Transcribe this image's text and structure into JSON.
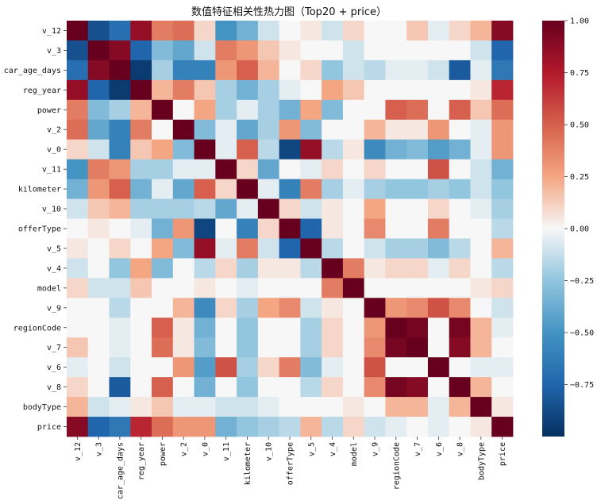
{
  "chart_data": {
    "type": "heatmap",
    "title": "数值特征相关性热力图（Top20 + price）",
    "xlabel": "",
    "ylabel": "",
    "labels": [
      "v_12",
      "v_3",
      "car_age_days",
      "reg_year",
      "power",
      "v_2",
      "v_0",
      "v_11",
      "kilometer",
      "v_10",
      "offerType",
      "v_5",
      "v_4",
      "model",
      "v_9",
      "regionCode",
      "v_7",
      "v_6",
      "v_8",
      "bodyType",
      "price"
    ],
    "vlim": [
      -1,
      1
    ],
    "colorbar_ticks": [
      1.0,
      0.75,
      0.5,
      0.25,
      0.0,
      -0.25,
      -0.5,
      -0.75
    ],
    "colorbar_tick_labels": [
      "1.00",
      "0.75",
      "0.50",
      "0.25",
      "0.00",
      "−0.25",
      "−0.50",
      "−0.75"
    ],
    "colormap": "RdBu_r",
    "matrix": [
      [
        1.0,
        -0.85,
        -0.7,
        0.85,
        0.4,
        0.45,
        0.1,
        -0.5,
        -0.35,
        -0.1,
        0.0,
        0.05,
        -0.1,
        0.1,
        0.0,
        0.0,
        0.15,
        -0.05,
        0.1,
        0.2,
        0.9
      ],
      [
        -0.85,
        1.0,
        0.9,
        -0.75,
        -0.3,
        -0.4,
        -0.1,
        0.4,
        0.3,
        0.15,
        0.05,
        0.0,
        0.0,
        -0.1,
        0.0,
        0.0,
        0.0,
        0.0,
        0.0,
        -0.1,
        -0.75
      ],
      [
        -0.7,
        0.9,
        1.0,
        -0.95,
        -0.2,
        -0.6,
        -0.6,
        0.3,
        0.5,
        0.2,
        0.0,
        0.1,
        -0.25,
        -0.1,
        -0.15,
        -0.05,
        -0.05,
        -0.1,
        -0.8,
        -0.05,
        -0.65
      ],
      [
        0.85,
        -0.75,
        -0.95,
        1.0,
        0.2,
        0.4,
        0.15,
        -0.2,
        -0.35,
        -0.2,
        -0.05,
        0.0,
        0.25,
        0.15,
        0.0,
        0.0,
        0.0,
        0.0,
        0.0,
        0.05,
        0.7
      ],
      [
        0.4,
        -0.3,
        -0.2,
        0.2,
        1.0,
        0.0,
        0.25,
        -0.2,
        -0.05,
        -0.2,
        -0.35,
        0.25,
        -0.3,
        0.0,
        0.0,
        0.5,
        0.45,
        0.0,
        0.5,
        0.15,
        0.45
      ],
      [
        0.45,
        -0.4,
        -0.6,
        0.4,
        0.0,
        1.0,
        -0.3,
        -0.05,
        -0.4,
        -0.2,
        0.3,
        -0.3,
        0.0,
        0.0,
        0.2,
        0.05,
        0.05,
        0.3,
        0.0,
        -0.05,
        0.3
      ],
      [
        0.1,
        -0.1,
        -0.6,
        0.15,
        0.25,
        -0.3,
        1.0,
        -0.05,
        0.5,
        -0.15,
        -0.9,
        0.85,
        -0.15,
        0.05,
        -0.55,
        -0.35,
        -0.3,
        -0.45,
        -0.35,
        -0.05,
        0.3
      ],
      [
        -0.5,
        0.4,
        0.3,
        -0.2,
        -0.2,
        -0.05,
        -0.05,
        1.0,
        0.1,
        -0.4,
        0.0,
        -0.05,
        0.1,
        0.0,
        0.1,
        0.0,
        0.0,
        0.55,
        0.0,
        -0.1,
        -0.35
      ],
      [
        -0.35,
        0.3,
        0.5,
        -0.35,
        -0.05,
        -0.4,
        0.5,
        0.1,
        1.0,
        -0.05,
        -0.6,
        0.4,
        -0.2,
        -0.05,
        -0.2,
        -0.25,
        -0.25,
        -0.2,
        -0.25,
        -0.1,
        -0.25
      ],
      [
        -0.1,
        0.15,
        0.2,
        -0.2,
        -0.2,
        -0.2,
        -0.15,
        -0.4,
        -0.05,
        1.0,
        0.1,
        -0.1,
        0.05,
        0.0,
        0.25,
        0.0,
        0.0,
        0.1,
        0.0,
        -0.05,
        -0.2
      ],
      [
        0.0,
        0.05,
        0.0,
        -0.05,
        -0.35,
        0.3,
        -0.9,
        0.0,
        -0.6,
        0.1,
        1.0,
        -0.75,
        0.05,
        0.0,
        0.35,
        0.0,
        0.0,
        0.4,
        0.0,
        0.0,
        -0.15
      ],
      [
        0.05,
        0.0,
        0.1,
        0.0,
        0.25,
        -0.3,
        0.85,
        -0.05,
        0.4,
        -0.1,
        -0.75,
        1.0,
        -0.15,
        0.0,
        -0.1,
        -0.2,
        -0.2,
        -0.3,
        -0.15,
        0.0,
        0.2
      ],
      [
        -0.1,
        0.0,
        -0.25,
        0.25,
        -0.3,
        0.0,
        -0.15,
        0.1,
        -0.2,
        0.05,
        0.05,
        -0.15,
        1.0,
        0.4,
        0.05,
        0.1,
        0.1,
        -0.05,
        0.1,
        0.0,
        -0.15
      ],
      [
        0.1,
        -0.1,
        -0.1,
        0.15,
        0.0,
        0.0,
        0.05,
        0.0,
        -0.05,
        0.0,
        0.0,
        0.0,
        0.4,
        1.0,
        0.0,
        0.0,
        0.0,
        0.0,
        0.0,
        0.05,
        0.1
      ],
      [
        0.0,
        0.0,
        -0.15,
        0.0,
        0.0,
        0.2,
        -0.55,
        0.1,
        -0.2,
        0.25,
        0.35,
        -0.1,
        0.05,
        0.0,
        1.0,
        0.3,
        0.35,
        0.55,
        0.35,
        0.0,
        -0.1
      ],
      [
        0.0,
        0.0,
        -0.05,
        0.0,
        0.5,
        0.05,
        -0.35,
        0.0,
        -0.25,
        0.0,
        0.0,
        -0.2,
        0.1,
        0.0,
        0.3,
        1.0,
        0.95,
        0.0,
        0.95,
        0.2,
        -0.05
      ],
      [
        0.15,
        0.0,
        -0.05,
        0.0,
        0.45,
        0.05,
        -0.3,
        0.0,
        -0.25,
        0.0,
        0.0,
        -0.2,
        0.1,
        0.0,
        0.35,
        0.95,
        1.0,
        0.0,
        0.9,
        0.2,
        0.0
      ],
      [
        -0.05,
        0.0,
        -0.1,
        0.0,
        0.0,
        0.3,
        -0.45,
        0.55,
        -0.2,
        0.1,
        0.4,
        -0.3,
        -0.05,
        0.0,
        0.55,
        0.0,
        0.0,
        1.0,
        0.0,
        -0.05,
        -0.05
      ],
      [
        0.1,
        0.0,
        -0.8,
        0.0,
        0.5,
        0.0,
        -0.35,
        0.0,
        -0.25,
        0.0,
        0.0,
        -0.15,
        0.1,
        0.0,
        0.35,
        0.95,
        0.9,
        0.0,
        1.0,
        0.2,
        0.0
      ],
      [
        0.2,
        -0.1,
        -0.05,
        0.05,
        0.15,
        -0.05,
        -0.05,
        -0.1,
        -0.1,
        -0.05,
        0.0,
        0.0,
        0.0,
        0.05,
        0.0,
        0.2,
        0.2,
        -0.05,
        0.2,
        1.0,
        0.05
      ],
      [
        0.9,
        -0.75,
        -0.65,
        0.7,
        0.45,
        0.3,
        0.3,
        -0.35,
        -0.25,
        -0.2,
        -0.15,
        0.2,
        -0.15,
        0.1,
        -0.1,
        -0.05,
        0.0,
        -0.05,
        0.0,
        0.05,
        1.0
      ]
    ]
  }
}
